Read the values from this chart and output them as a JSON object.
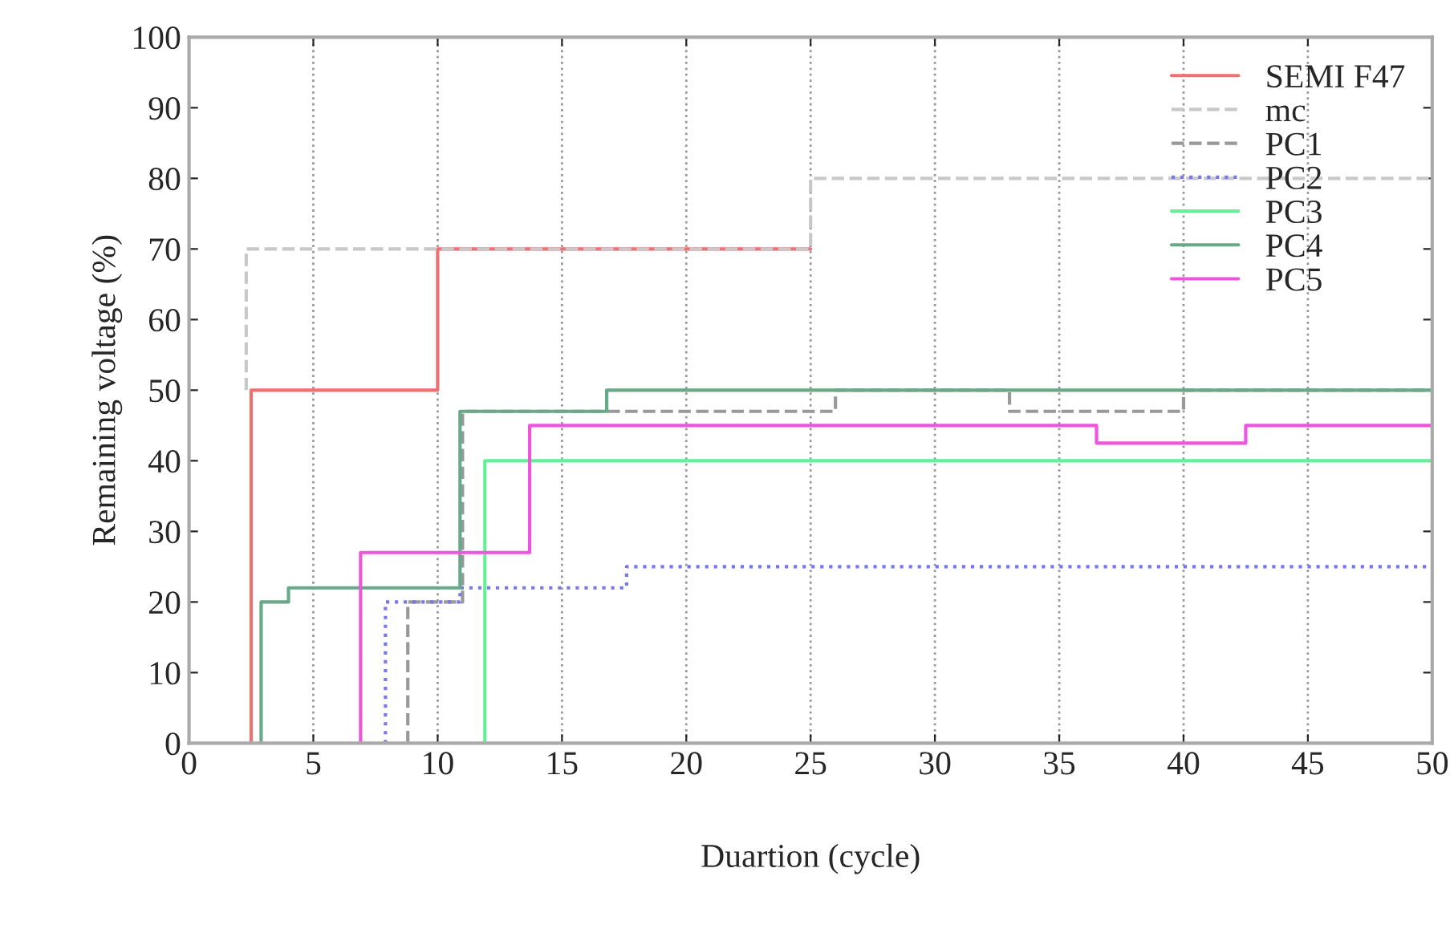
{
  "chart_data": {
    "type": "step",
    "xlabel": "Duartion (cycle)",
    "ylabel": "Remaining voltage (%)",
    "xlim": [
      0,
      50
    ],
    "ylim": [
      0,
      100
    ],
    "xticks": [
      0,
      5,
      10,
      15,
      20,
      25,
      30,
      35,
      40,
      45,
      50
    ],
    "yticks": [
      0,
      10,
      20,
      30,
      40,
      50,
      60,
      70,
      80,
      90,
      100
    ],
    "grid": "x",
    "legend": "top right",
    "series": [
      {
        "name": "SEMI F47",
        "color": "#f07070",
        "line_style": "solid",
        "x": [
          2.5,
          2.5,
          10,
          25
        ],
        "values": [
          0,
          50,
          70,
          70
        ]
      },
      {
        "name": "mc",
        "color": "#c8c8c8",
        "line_style": "dashed",
        "x": [
          2.3,
          2.3,
          25,
          50
        ],
        "values": [
          50,
          70,
          80,
          80
        ]
      },
      {
        "name": "PC1",
        "color": "#999999",
        "line_style": "dashed",
        "x": [
          8.8,
          8.8,
          11,
          26,
          33,
          40,
          50
        ],
        "values": [
          0,
          20,
          47,
          50,
          47,
          50,
          50
        ]
      },
      {
        "name": "PC2",
        "color": "#7777ee",
        "line_style": "dotted",
        "x": [
          7.9,
          7.9,
          10.9,
          17.6,
          50
        ],
        "values": [
          0,
          20,
          22,
          25,
          25
        ]
      },
      {
        "name": "PC3",
        "color": "#66ee99",
        "line_style": "solid",
        "x": [
          11.9,
          11.9,
          50
        ],
        "values": [
          0,
          40,
          40
        ]
      },
      {
        "name": "PC4",
        "color": "#66aa88",
        "line_style": "solid",
        "x": [
          2.9,
          2.9,
          4,
          10.9,
          16.8,
          50
        ],
        "values": [
          0,
          20,
          22,
          47,
          50,
          50
        ]
      },
      {
        "name": "PC5",
        "color": "#ee55dd",
        "line_style": "solid",
        "x": [
          6.9,
          6.9,
          13.7,
          36.5,
          42.5,
          50
        ],
        "values": [
          0,
          27,
          45,
          42.5,
          45,
          45
        ]
      }
    ]
  }
}
